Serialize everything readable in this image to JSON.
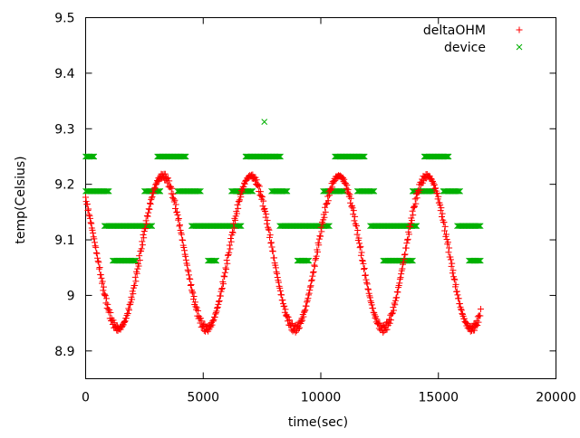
{
  "chart_data": {
    "type": "scatter",
    "title": "",
    "xlabel": "time(sec)",
    "ylabel": "temp(Celsius)",
    "xlim": [
      0,
      20000
    ],
    "ylim": [
      8.85,
      9.5
    ],
    "x_ticks": [
      0,
      5000,
      10000,
      15000,
      20000
    ],
    "y_ticks": [
      8.9,
      9,
      9.1,
      9.2,
      9.3,
      9.4,
      9.5
    ],
    "x_tick_labels": [
      "0",
      "5000",
      "10000",
      "15000",
      "20000"
    ],
    "y_tick_labels": [
      "8.9",
      "9",
      "9.1",
      "9.2",
      "9.3",
      "9.4",
      "9.5"
    ],
    "grid": false,
    "legend": "top-right",
    "series": [
      {
        "name": "deltaOHM",
        "marker": "plus",
        "color": "#ff0000",
        "model": {
          "x_start": 0,
          "x_end": 16800,
          "min_value": 8.94,
          "max_value": 9.215,
          "period_sec": 3750,
          "first_min_x": 1400
        }
      },
      {
        "name": "device",
        "marker": "cross",
        "color": "#00b000",
        "segments": [
          {
            "y": 9.25,
            "x_from": 0,
            "x_to": 400
          },
          {
            "y": 9.1875,
            "x_from": 0,
            "x_to": 1000
          },
          {
            "y": 9.125,
            "x_from": 800,
            "x_to": 2850
          },
          {
            "y": 9.0625,
            "x_from": 1150,
            "x_to": 2150
          },
          {
            "y": 9.1875,
            "x_from": 2500,
            "x_to": 3200
          },
          {
            "y": 9.25,
            "x_from": 3050,
            "x_to": 4300
          },
          {
            "y": 9.1875,
            "x_from": 3900,
            "x_to": 4900
          },
          {
            "y": 9.125,
            "x_from": 4500,
            "x_to": 6650
          },
          {
            "y": 9.0625,
            "x_from": 5200,
            "x_to": 5600
          },
          {
            "y": 9.1875,
            "x_from": 6200,
            "x_to": 7100
          },
          {
            "y": 9.25,
            "x_from": 6800,
            "x_to": 8300
          },
          {
            "y": 9.1875,
            "x_from": 7900,
            "x_to": 8600
          },
          {
            "y": 9.125,
            "x_from": 8250,
            "x_to": 10400
          },
          {
            "y": 9.0625,
            "x_from": 9000,
            "x_to": 9500
          },
          {
            "y": 9.1875,
            "x_from": 10100,
            "x_to": 11000
          },
          {
            "y": 9.25,
            "x_from": 10600,
            "x_to": 11900
          },
          {
            "y": 9.1875,
            "x_from": 11550,
            "x_to": 12300
          },
          {
            "y": 9.125,
            "x_from": 12100,
            "x_to": 14100
          },
          {
            "y": 9.0625,
            "x_from": 12650,
            "x_to": 13950
          },
          {
            "y": 9.1875,
            "x_from": 13900,
            "x_to": 14800
          },
          {
            "y": 9.25,
            "x_from": 14400,
            "x_to": 15450
          },
          {
            "y": 9.1875,
            "x_from": 15200,
            "x_to": 15950
          },
          {
            "y": 9.125,
            "x_from": 15800,
            "x_to": 16800
          },
          {
            "y": 9.0625,
            "x_from": 16300,
            "x_to": 16800
          }
        ],
        "points": [
          {
            "x": 7600,
            "y": 9.3125
          }
        ]
      }
    ]
  }
}
